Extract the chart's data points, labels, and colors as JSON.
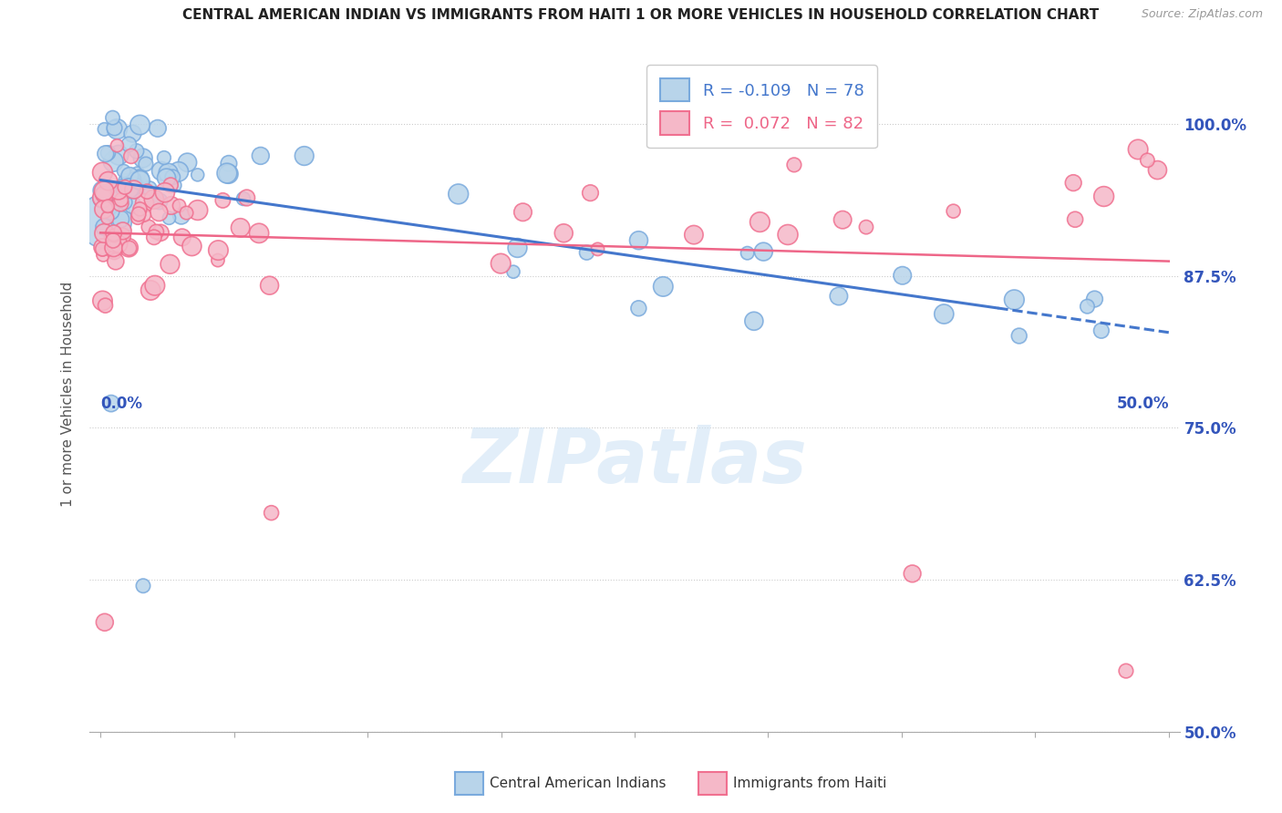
{
  "title": "CENTRAL AMERICAN INDIAN VS IMMIGRANTS FROM HAITI 1 OR MORE VEHICLES IN HOUSEHOLD CORRELATION CHART",
  "source": "Source: ZipAtlas.com",
  "ylabel": "1 or more Vehicles in Household",
  "ylabel_ticks": [
    "50.0%",
    "62.5%",
    "75.0%",
    "87.5%",
    "100.0%"
  ],
  "ylabel_values": [
    0.5,
    0.625,
    0.75,
    0.875,
    1.0
  ],
  "xlim": [
    0.0,
    0.5
  ],
  "ylim": [
    0.5,
    1.05
  ],
  "legend_blue_r": "-0.109",
  "legend_blue_n": "78",
  "legend_pink_r": "0.072",
  "legend_pink_n": "82",
  "legend_label_blue": "Central American Indians",
  "legend_label_pink": "Immigrants from Haiti",
  "blue_color": "#b8d4ea",
  "pink_color": "#f5b8c8",
  "blue_edge": "#7aaadd",
  "pink_edge": "#f07090",
  "trend_blue": "#4477cc",
  "trend_pink": "#ee6688",
  "background_color": "#ffffff",
  "grid_color": "#cccccc",
  "title_color": "#222222",
  "axis_label_color": "#3355bb",
  "watermark_color": "#d0e4f5",
  "watermark": "ZIPatlas"
}
